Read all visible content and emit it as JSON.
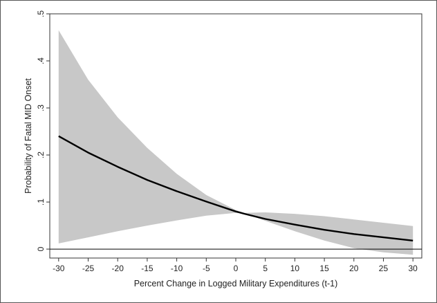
{
  "chart_data": {
    "type": "line",
    "title": "",
    "xlabel": "Percent Change in Logged Military Expenditures (t-1)",
    "ylabel": "Probability of Fatal MID Onset",
    "xlim": [
      -30,
      30
    ],
    "ylim": [
      0,
      0.5
    ],
    "x_ticks": [
      -30,
      -25,
      -20,
      -15,
      -10,
      -5,
      0,
      5,
      10,
      15,
      20,
      25,
      30
    ],
    "x_tick_labels": [
      "-30",
      "-25",
      "-20",
      "-15",
      "-10",
      "-5",
      "0",
      "5",
      "10",
      "15",
      "20",
      "25",
      "30"
    ],
    "y_ticks": [
      0,
      0.1,
      0.2,
      0.3,
      0.4,
      0.5
    ],
    "y_tick_labels": [
      "0",
      ".1",
      ".2",
      ".3",
      ".4",
      ".5"
    ],
    "grid": false,
    "reference_line_y": 0,
    "series": [
      {
        "role": "estimate",
        "color": "#000000",
        "x": [
          -30,
          -25,
          -20,
          -15,
          -10,
          -5,
          0,
          1.5,
          5,
          10,
          15,
          20,
          25,
          30
        ],
        "y": [
          0.24,
          0.205,
          0.175,
          0.147,
          0.123,
          0.101,
          0.08,
          0.075,
          0.064,
          0.052,
          0.041,
          0.032,
          0.025,
          0.018
        ]
      },
      {
        "role": "ci_upper",
        "color": "#c8c8c8",
        "x": [
          -30,
          -25,
          -20,
          -15,
          -10,
          -5,
          0,
          1.5,
          5,
          10,
          15,
          20,
          25,
          30
        ],
        "y": [
          0.465,
          0.36,
          0.28,
          0.215,
          0.16,
          0.115,
          0.083,
          0.077,
          0.078,
          0.075,
          0.07,
          0.063,
          0.056,
          0.049
        ]
      },
      {
        "role": "ci_lower",
        "color": "#c8c8c8",
        "x": [
          -30,
          -25,
          -20,
          -15,
          -10,
          -5,
          0,
          1.5,
          5,
          10,
          15,
          20,
          25,
          30
        ],
        "y": [
          0.012,
          0.025,
          0.038,
          0.05,
          0.061,
          0.071,
          0.077,
          0.076,
          0.06,
          0.038,
          0.018,
          0.002,
          -0.007,
          -0.012
        ]
      }
    ]
  }
}
